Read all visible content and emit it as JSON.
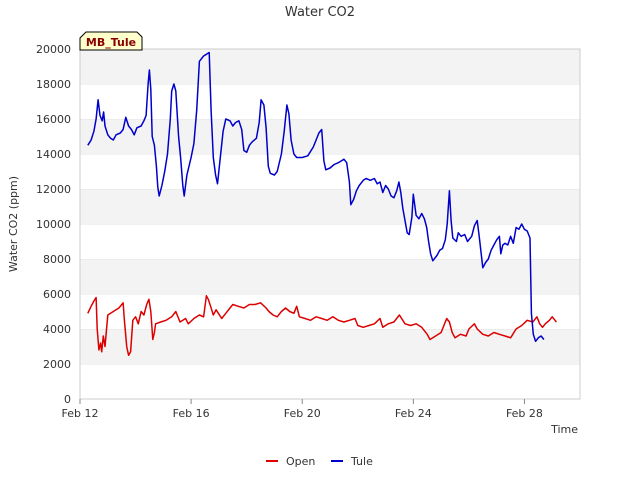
{
  "chart_data": {
    "type": "line",
    "title": "Water CO2",
    "xlabel": "Time",
    "ylabel": "Water CO2 (ppm)",
    "site_label": "MB_Tule",
    "x_unit": "days since Feb 12 (axis shown as dates)",
    "xlim": [
      0,
      18
    ],
    "ylim": [
      0,
      20000
    ],
    "x_ticks": [
      {
        "value": 0,
        "label": "Feb 12"
      },
      {
        "value": 4,
        "label": "Feb 16"
      },
      {
        "value": 8,
        "label": "Feb 20"
      },
      {
        "value": 12,
        "label": "Feb 24"
      },
      {
        "value": 16,
        "label": "Feb 28"
      }
    ],
    "y_ticks": [
      0,
      2000,
      4000,
      6000,
      8000,
      10000,
      12000,
      14000,
      16000,
      18000,
      20000
    ],
    "grid": "horizontal bands",
    "legend_position": "bottom-center",
    "series": [
      {
        "name": "Open",
        "color": "#dd0000",
        "points": [
          [
            0.28,
            4900
          ],
          [
            0.4,
            5300
          ],
          [
            0.5,
            5600
          ],
          [
            0.58,
            5800
          ],
          [
            0.62,
            4000
          ],
          [
            0.68,
            2800
          ],
          [
            0.74,
            3200
          ],
          [
            0.78,
            2700
          ],
          [
            0.84,
            3600
          ],
          [
            0.9,
            3000
          ],
          [
            1.0,
            4800
          ],
          [
            1.2,
            5000
          ],
          [
            1.4,
            5200
          ],
          [
            1.55,
            5500
          ],
          [
            1.6,
            4500
          ],
          [
            1.68,
            3000
          ],
          [
            1.75,
            2500
          ],
          [
            1.82,
            2700
          ],
          [
            1.9,
            4500
          ],
          [
            2.0,
            4700
          ],
          [
            2.1,
            4300
          ],
          [
            2.2,
            5000
          ],
          [
            2.3,
            4800
          ],
          [
            2.4,
            5400
          ],
          [
            2.48,
            5700
          ],
          [
            2.55,
            5000
          ],
          [
            2.62,
            3400
          ],
          [
            2.68,
            3800
          ],
          [
            2.72,
            4300
          ],
          [
            2.9,
            4400
          ],
          [
            3.1,
            4500
          ],
          [
            3.3,
            4700
          ],
          [
            3.45,
            5000
          ],
          [
            3.6,
            4400
          ],
          [
            3.8,
            4600
          ],
          [
            3.9,
            4300
          ],
          [
            4.1,
            4600
          ],
          [
            4.3,
            4800
          ],
          [
            4.45,
            4700
          ],
          [
            4.55,
            5900
          ],
          [
            4.62,
            5700
          ],
          [
            4.7,
            5300
          ],
          [
            4.8,
            4800
          ],
          [
            4.9,
            5100
          ],
          [
            5.1,
            4600
          ],
          [
            5.25,
            4900
          ],
          [
            5.4,
            5200
          ],
          [
            5.5,
            5400
          ],
          [
            5.7,
            5300
          ],
          [
            5.9,
            5200
          ],
          [
            6.1,
            5400
          ],
          [
            6.3,
            5400
          ],
          [
            6.5,
            5500
          ],
          [
            6.7,
            5200
          ],
          [
            6.8,
            5000
          ],
          [
            6.95,
            4800
          ],
          [
            7.1,
            4700
          ],
          [
            7.25,
            5000
          ],
          [
            7.4,
            5200
          ],
          [
            7.55,
            5000
          ],
          [
            7.7,
            4900
          ],
          [
            7.8,
            5300
          ],
          [
            7.9,
            4700
          ],
          [
            8.1,
            4600
          ],
          [
            8.3,
            4500
          ],
          [
            8.5,
            4700
          ],
          [
            8.7,
            4600
          ],
          [
            8.9,
            4500
          ],
          [
            9.1,
            4700
          ],
          [
            9.3,
            4500
          ],
          [
            9.5,
            4400
          ],
          [
            9.7,
            4500
          ],
          [
            9.9,
            4600
          ],
          [
            10.0,
            4200
          ],
          [
            10.2,
            4100
          ],
          [
            10.4,
            4200
          ],
          [
            10.6,
            4300
          ],
          [
            10.8,
            4600
          ],
          [
            10.9,
            4100
          ],
          [
            11.1,
            4300
          ],
          [
            11.3,
            4400
          ],
          [
            11.5,
            4800
          ],
          [
            11.7,
            4300
          ],
          [
            11.9,
            4200
          ],
          [
            12.1,
            4300
          ],
          [
            12.3,
            4100
          ],
          [
            12.5,
            3700
          ],
          [
            12.6,
            3400
          ],
          [
            12.8,
            3600
          ],
          [
            13.0,
            3800
          ],
          [
            13.1,
            4200
          ],
          [
            13.2,
            4600
          ],
          [
            13.3,
            4400
          ],
          [
            13.4,
            3800
          ],
          [
            13.5,
            3500
          ],
          [
            13.7,
            3700
          ],
          [
            13.9,
            3600
          ],
          [
            14.0,
            4000
          ],
          [
            14.2,
            4300
          ],
          [
            14.3,
            4000
          ],
          [
            14.5,
            3700
          ],
          [
            14.7,
            3600
          ],
          [
            14.9,
            3800
          ],
          [
            15.1,
            3700
          ],
          [
            15.3,
            3600
          ],
          [
            15.5,
            3500
          ],
          [
            15.7,
            4000
          ],
          [
            15.9,
            4200
          ],
          [
            16.1,
            4500
          ],
          [
            16.3,
            4400
          ],
          [
            16.45,
            4700
          ],
          [
            16.55,
            4300
          ],
          [
            16.65,
            4100
          ],
          [
            16.75,
            4300
          ],
          [
            16.9,
            4500
          ],
          [
            17.0,
            4700
          ],
          [
            17.15,
            4400
          ]
        ]
      },
      {
        "name": "Tule",
        "color": "#0000cc",
        "points": [
          [
            0.28,
            14500
          ],
          [
            0.4,
            14800
          ],
          [
            0.5,
            15300
          ],
          [
            0.58,
            16000
          ],
          [
            0.65,
            17100
          ],
          [
            0.72,
            16200
          ],
          [
            0.8,
            15900
          ],
          [
            0.85,
            16400
          ],
          [
            0.9,
            15600
          ],
          [
            1.0,
            15100
          ],
          [
            1.1,
            14900
          ],
          [
            1.2,
            14800
          ],
          [
            1.3,
            15100
          ],
          [
            1.45,
            15200
          ],
          [
            1.55,
            15400
          ],
          [
            1.65,
            16100
          ],
          [
            1.75,
            15600
          ],
          [
            1.85,
            15400
          ],
          [
            1.95,
            15100
          ],
          [
            2.05,
            15500
          ],
          [
            2.2,
            15600
          ],
          [
            2.3,
            15900
          ],
          [
            2.38,
            16200
          ],
          [
            2.45,
            18000
          ],
          [
            2.5,
            18800
          ],
          [
            2.55,
            17700
          ],
          [
            2.6,
            15000
          ],
          [
            2.68,
            14500
          ],
          [
            2.75,
            13300
          ],
          [
            2.8,
            12100
          ],
          [
            2.85,
            11600
          ],
          [
            2.95,
            12200
          ],
          [
            3.05,
            13000
          ],
          [
            3.15,
            14000
          ],
          [
            3.25,
            16000
          ],
          [
            3.3,
            17600
          ],
          [
            3.38,
            18000
          ],
          [
            3.45,
            17600
          ],
          [
            3.55,
            15000
          ],
          [
            3.62,
            13800
          ],
          [
            3.7,
            12200
          ],
          [
            3.75,
            11600
          ],
          [
            3.85,
            12800
          ],
          [
            4.0,
            13800
          ],
          [
            4.1,
            14600
          ],
          [
            4.2,
            16500
          ],
          [
            4.3,
            19300
          ],
          [
            4.45,
            19600
          ],
          [
            4.55,
            19700
          ],
          [
            4.65,
            19800
          ],
          [
            4.72,
            16500
          ],
          [
            4.8,
            13800
          ],
          [
            4.88,
            12800
          ],
          [
            4.95,
            12300
          ],
          [
            5.05,
            13800
          ],
          [
            5.15,
            15300
          ],
          [
            5.25,
            16000
          ],
          [
            5.4,
            15900
          ],
          [
            5.5,
            15600
          ],
          [
            5.6,
            15800
          ],
          [
            5.72,
            15900
          ],
          [
            5.82,
            15400
          ],
          [
            5.9,
            14200
          ],
          [
            6.0,
            14100
          ],
          [
            6.1,
            14500
          ],
          [
            6.2,
            14700
          ],
          [
            6.35,
            14900
          ],
          [
            6.45,
            15800
          ],
          [
            6.52,
            17100
          ],
          [
            6.62,
            16800
          ],
          [
            6.7,
            15500
          ],
          [
            6.78,
            13300
          ],
          [
            6.85,
            12900
          ],
          [
            7.0,
            12800
          ],
          [
            7.1,
            13000
          ],
          [
            7.25,
            14000
          ],
          [
            7.35,
            15300
          ],
          [
            7.45,
            16800
          ],
          [
            7.52,
            16300
          ],
          [
            7.6,
            14800
          ],
          [
            7.7,
            14000
          ],
          [
            7.8,
            13800
          ],
          [
            8.0,
            13800
          ],
          [
            8.2,
            13900
          ],
          [
            8.4,
            14400
          ],
          [
            8.5,
            14800
          ],
          [
            8.6,
            15200
          ],
          [
            8.7,
            15400
          ],
          [
            8.78,
            13600
          ],
          [
            8.85,
            13100
          ],
          [
            9.0,
            13200
          ],
          [
            9.15,
            13400
          ],
          [
            9.3,
            13500
          ],
          [
            9.5,
            13700
          ],
          [
            9.6,
            13500
          ],
          [
            9.7,
            12400
          ],
          [
            9.75,
            11100
          ],
          [
            9.85,
            11400
          ],
          [
            9.95,
            11900
          ],
          [
            10.05,
            12200
          ],
          [
            10.2,
            12500
          ],
          [
            10.3,
            12600
          ],
          [
            10.45,
            12500
          ],
          [
            10.6,
            12600
          ],
          [
            10.7,
            12300
          ],
          [
            10.8,
            12400
          ],
          [
            10.9,
            11800
          ],
          [
            11.0,
            12200
          ],
          [
            11.1,
            12000
          ],
          [
            11.2,
            11600
          ],
          [
            11.3,
            11500
          ],
          [
            11.4,
            11900
          ],
          [
            11.48,
            12400
          ],
          [
            11.55,
            11800
          ],
          [
            11.62,
            10900
          ],
          [
            11.7,
            10200
          ],
          [
            11.78,
            9500
          ],
          [
            11.85,
            9400
          ],
          [
            11.95,
            10400
          ],
          [
            12.0,
            11700
          ],
          [
            12.1,
            10500
          ],
          [
            12.2,
            10300
          ],
          [
            12.3,
            10600
          ],
          [
            12.4,
            10300
          ],
          [
            12.48,
            9800
          ],
          [
            12.55,
            9000
          ],
          [
            12.62,
            8300
          ],
          [
            12.7,
            7900
          ],
          [
            12.85,
            8200
          ],
          [
            12.95,
            8500
          ],
          [
            13.05,
            8600
          ],
          [
            13.15,
            9100
          ],
          [
            13.22,
            10000
          ],
          [
            13.3,
            11900
          ],
          [
            13.36,
            10200
          ],
          [
            13.42,
            9200
          ],
          [
            13.55,
            9000
          ],
          [
            13.62,
            9500
          ],
          [
            13.72,
            9300
          ],
          [
            13.85,
            9400
          ],
          [
            13.95,
            9000
          ],
          [
            14.1,
            9300
          ],
          [
            14.2,
            9900
          ],
          [
            14.3,
            10200
          ],
          [
            14.37,
            9300
          ],
          [
            14.42,
            8600
          ],
          [
            14.5,
            7500
          ],
          [
            14.6,
            7800
          ],
          [
            14.7,
            8000
          ],
          [
            14.8,
            8500
          ],
          [
            14.9,
            8800
          ],
          [
            15.0,
            9100
          ],
          [
            15.1,
            9300
          ],
          [
            15.15,
            8300
          ],
          [
            15.22,
            8800
          ],
          [
            15.3,
            8900
          ],
          [
            15.4,
            8800
          ],
          [
            15.5,
            9300
          ],
          [
            15.6,
            8900
          ],
          [
            15.7,
            9800
          ],
          [
            15.8,
            9700
          ],
          [
            15.9,
            10000
          ],
          [
            16.0,
            9700
          ],
          [
            16.1,
            9600
          ],
          [
            16.2,
            9200
          ],
          [
            16.25,
            4900
          ],
          [
            16.32,
            3700
          ],
          [
            16.4,
            3300
          ],
          [
            16.5,
            3500
          ],
          [
            16.6,
            3600
          ],
          [
            16.7,
            3400
          ]
        ]
      }
    ]
  }
}
